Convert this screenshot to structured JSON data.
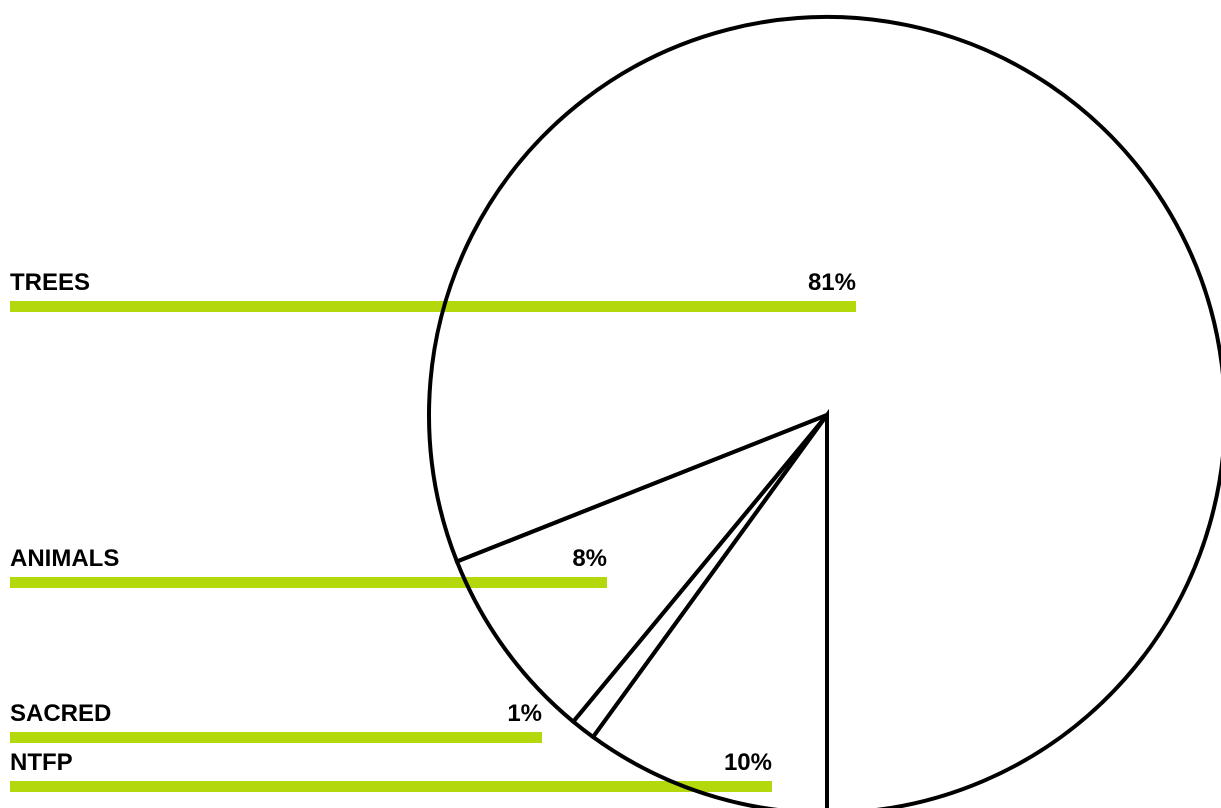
{
  "colors": {
    "accent": "#b3d80c",
    "stroke": "#000000",
    "background": "#ffffff"
  },
  "chart_data": {
    "type": "pie",
    "categories": [
      "TREES",
      "ANIMALS",
      "SACRED",
      "NTFP"
    ],
    "values": [
      81,
      8,
      1,
      10
    ],
    "value_labels": [
      "81%",
      "8%",
      "1%",
      "10%"
    ],
    "unit": "%",
    "title": "",
    "legend": "none"
  }
}
